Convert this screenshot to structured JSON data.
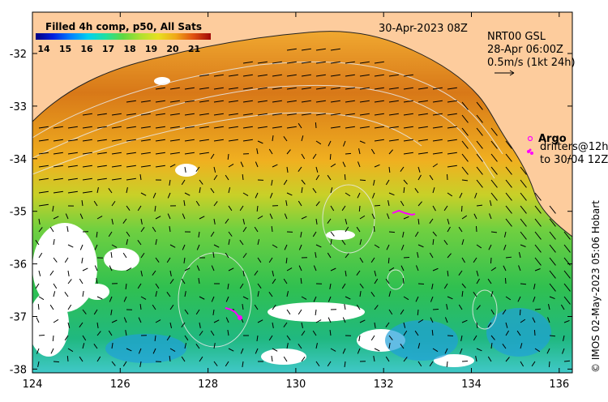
{
  "colorbar": {
    "title": "Filled 4h comp, p50, All Sats",
    "ticks": [
      "14",
      "15",
      "16",
      "17",
      "18",
      "19",
      "20",
      "21"
    ],
    "colors": [
      "#000080",
      "#0000d8",
      "#0060ff",
      "#00b8ff",
      "#00e8b0",
      "#50d850",
      "#a8e030",
      "#e8e020",
      "#f0b818",
      "#f08010",
      "#e04010",
      "#a00808"
    ]
  },
  "header": {
    "date": "30-Apr-2023 08Z",
    "product": "NRT00 GSL",
    "product_time": "28-Apr 06:00Z",
    "scale_label": "0.5m/s (1kt 24h)"
  },
  "legend": {
    "argo": "Argo",
    "drifters_line1": "drifters@12h",
    "drifters_line2": "to 30/04 12Z"
  },
  "axes": {
    "x_ticks": [
      "124",
      "126",
      "128",
      "130",
      "132",
      "134",
      "136"
    ],
    "y_ticks": [
      "-32",
      "-33",
      "-34",
      "-35",
      "-36",
      "-37",
      "-38"
    ]
  },
  "credit": "© IMOS 02-May-2023 05:06 Hobart",
  "colors": {
    "land": "#fdcc9d",
    "nodata": "#ffffff",
    "sst_warm": "#e89010",
    "sst_cool": "#3cc83c",
    "argo": "#ff00ff"
  }
}
